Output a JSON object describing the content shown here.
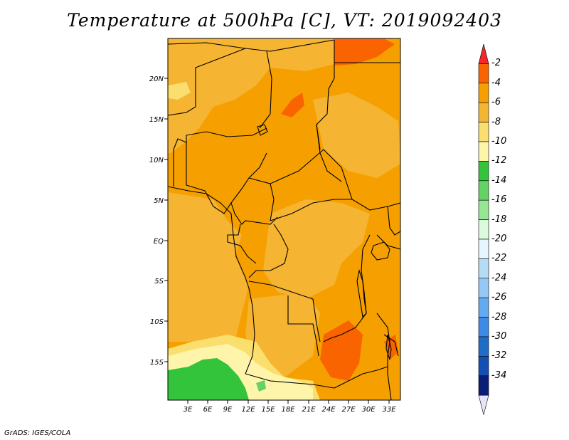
{
  "title": "Temperature at 500hPa [C], VT: 2019092403",
  "credit": "GrADS: IGES/COLA",
  "lat_ticks": [
    "20N",
    "15N",
    "10N",
    "5N",
    "EQ",
    "5S",
    "10S",
    "15S"
  ],
  "lon_ticks": [
    "3E",
    "6E",
    "9E",
    "12E",
    "15E",
    "18E",
    "21E",
    "24E",
    "27E",
    "30E",
    "33E"
  ],
  "colorbar": {
    "labels": [
      "-2",
      "-4",
      "-6",
      "-8",
      "-10",
      "-12",
      "-14",
      "-16",
      "-18",
      "-20",
      "-22",
      "-24",
      "-26",
      "-28",
      "-30",
      "-32",
      "-34"
    ],
    "colors": [
      "#f0282a",
      "#fa6400",
      "#f5a000",
      "#f5b432",
      "#fade6e",
      "#fff5aa",
      "#34c43c",
      "#64d264",
      "#96e696",
      "#dcfadc",
      "#e6f5ff",
      "#b4dcf5",
      "#96c8f5",
      "#64aaf0",
      "#3c8ce6",
      "#1e6ec8",
      "#1450b4",
      "#0a1e78",
      "#e6e6fa"
    ]
  },
  "colors": {
    "orange_main": "#f5a000",
    "orange_light": "#f5b432",
    "orange_dark": "#fa6400",
    "yellow_light": "#fade6e",
    "pale_yellow": "#fff5aa",
    "green": "#34c43c",
    "light_green": "#64d264"
  }
}
